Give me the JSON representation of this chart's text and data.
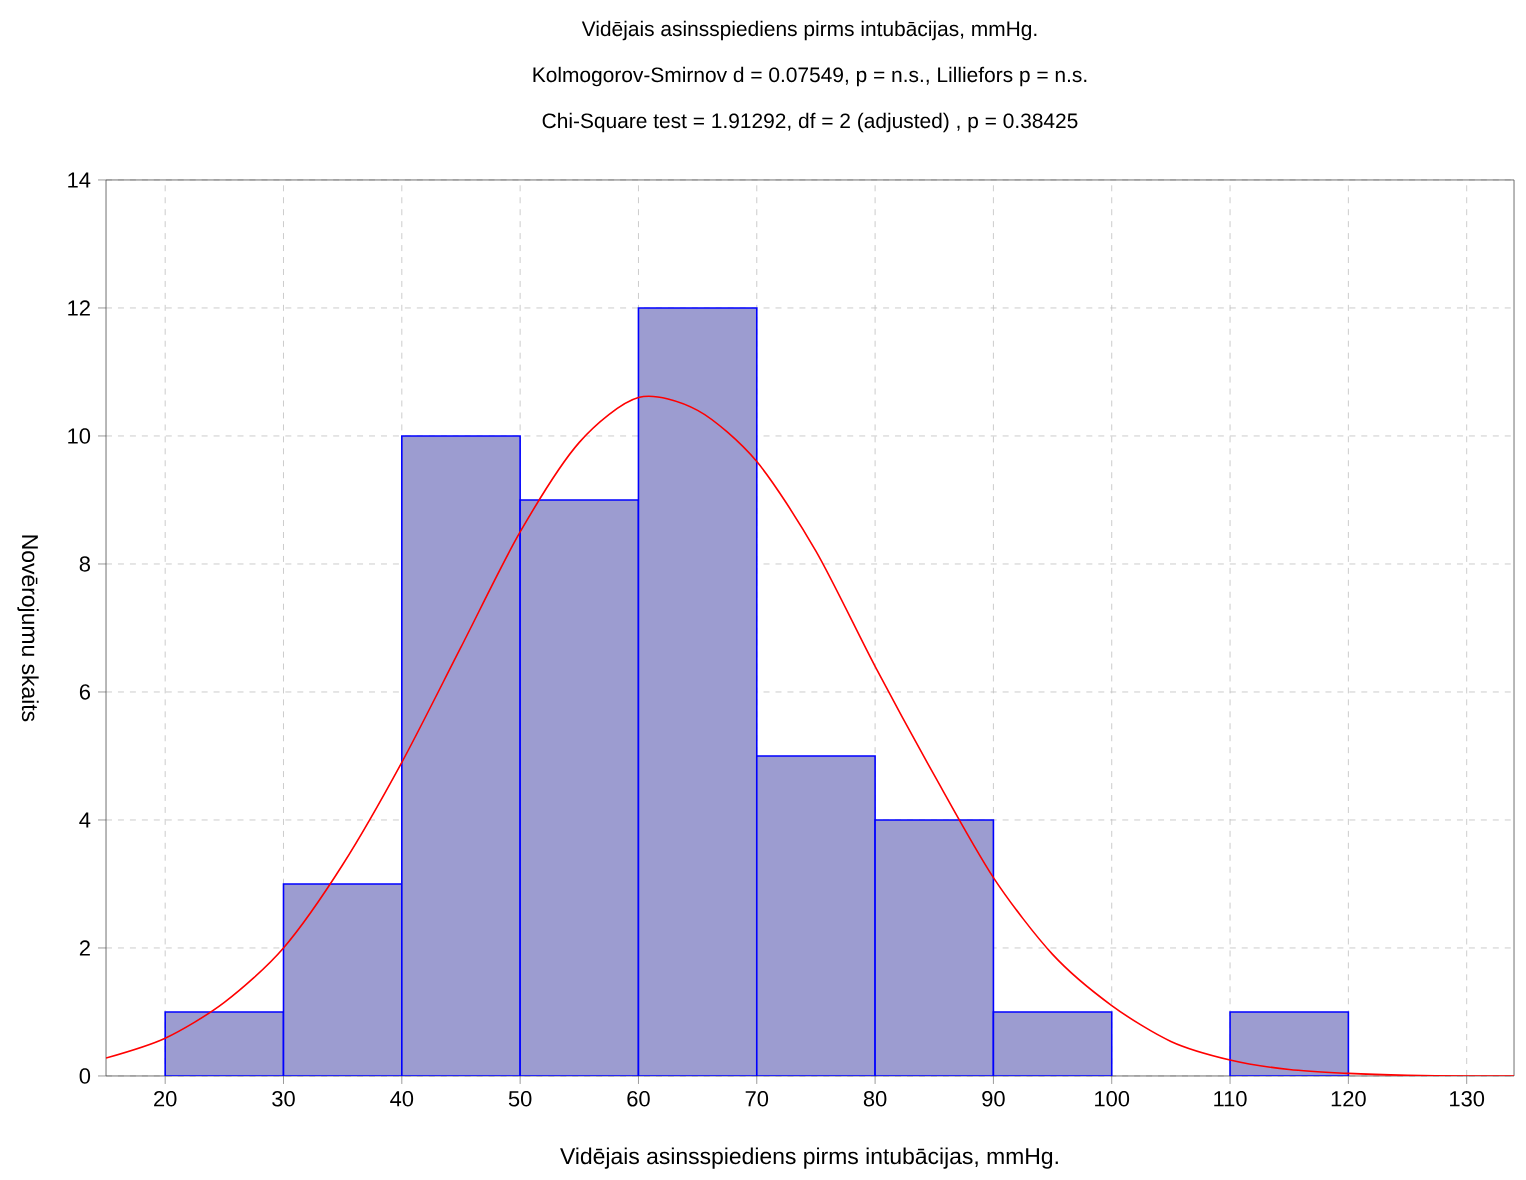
{
  "chart_data": {
    "type": "histogram",
    "title": "Vidējais asinsspiediens pirms intubācijas, mmHg.",
    "subtitle": "Kolmogorov-Smirnov d = 0.07549, p = n.s., Lilliefors p = n.s.",
    "annotations": [
      "Chi-Square test = 1.91292, df = 2 (adjusted) , p = 0.38425"
    ],
    "xlabel": "Vidējais asinsspiediens pirms intubācijas, mmHg.",
    "ylabel": "Novērojumu skaits",
    "bins": [
      20,
      30,
      40,
      50,
      60,
      70,
      80,
      90,
      100,
      110,
      120
    ],
    "values": [
      1,
      3,
      10,
      9,
      12,
      5,
      4,
      1,
      0,
      1
    ],
    "color": "#9c9cd0",
    "series": [
      {
        "type": "line",
        "color": "#ff0000",
        "x": [
          15,
          20,
          25,
          30,
          35,
          40,
          45,
          50,
          55,
          60,
          65,
          70,
          75,
          80,
          85,
          90,
          95,
          100,
          105,
          110,
          115,
          120,
          125,
          130,
          134
        ],
        "values": [
          0.28,
          0.59,
          1.15,
          2.0,
          3.3,
          4.9,
          6.7,
          8.5,
          9.9,
          10.6,
          10.4,
          9.6,
          8.2,
          6.4,
          4.7,
          3.1,
          1.9,
          1.1,
          0.54,
          0.25,
          0.1,
          0.04,
          0.01,
          0,
          0
        ]
      }
    ],
    "xlim": [
      15,
      134
    ],
    "ylim": [
      0,
      14
    ],
    "xticks": [
      20,
      30,
      40,
      50,
      60,
      70,
      80,
      90,
      100,
      110,
      120,
      130
    ],
    "yticks": [
      0,
      2,
      4,
      6,
      8,
      10,
      12,
      14
    ],
    "grid": true
  }
}
